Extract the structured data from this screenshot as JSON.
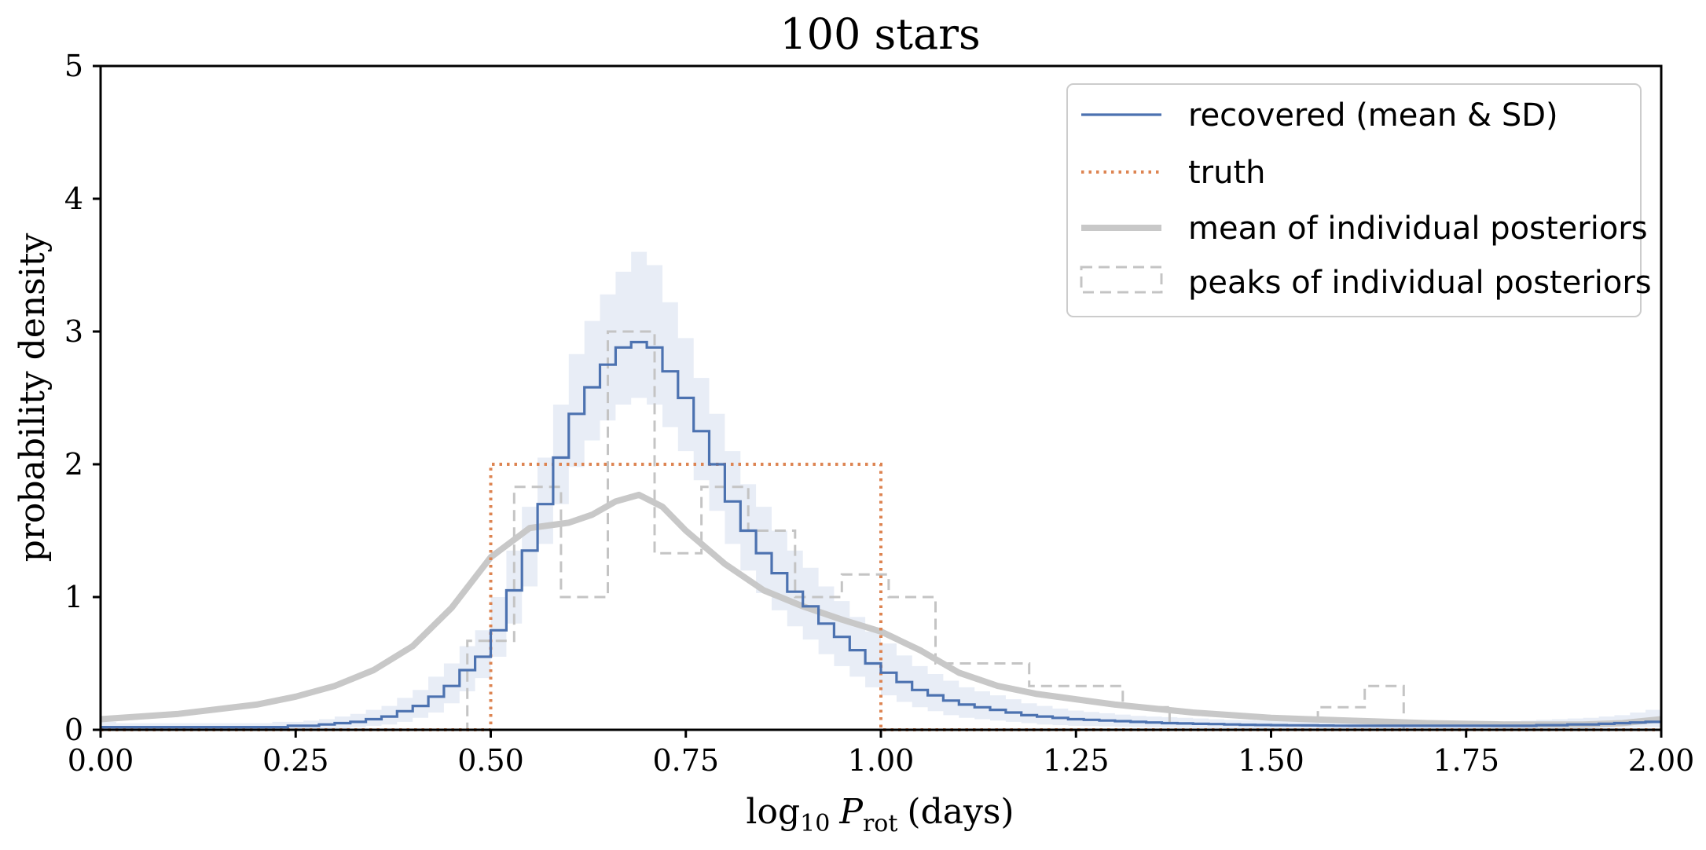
{
  "chart_data": {
    "type": "line",
    "title": "100 stars",
    "xlabel_prefix": "log",
    "xlabel_sub": "10",
    "xlabel_var": "P",
    "xlabel_var_sub": "rot",
    "xlabel_suffix": "(days)",
    "ylabel": "probability density",
    "xlim": [
      0,
      2
    ],
    "ylim": [
      0,
      5
    ],
    "xticks": [
      0,
      0.25,
      0.5,
      0.75,
      1.0,
      1.25,
      1.5,
      1.75,
      2.0
    ],
    "xtick_labels": [
      "0.00",
      "0.25",
      "0.50",
      "0.75",
      "1.00",
      "1.25",
      "1.50",
      "1.75",
      "2.00"
    ],
    "yticks": [
      0,
      1,
      2,
      3,
      4,
      5
    ],
    "ytick_labels": [
      "0",
      "1",
      "2",
      "3",
      "4",
      "5"
    ],
    "legend_position": "top-right",
    "colors": {
      "recovered": "#4c72b0",
      "band": "#e8edf6",
      "truth": "#dd8452",
      "mean_posteriors": "#c8c8c8",
      "peaks": "#c4c4c4",
      "axes": "#000000"
    },
    "series": [
      {
        "name": "recovered (mean & SD)",
        "style": "step",
        "bin_edges": [
          0.0,
          0.02,
          0.04,
          0.06,
          0.08,
          0.1,
          0.12,
          0.14,
          0.16,
          0.18,
          0.2,
          0.22,
          0.24,
          0.26,
          0.28,
          0.3,
          0.32,
          0.34,
          0.36,
          0.38,
          0.4,
          0.42,
          0.44,
          0.46,
          0.48,
          0.5,
          0.52,
          0.54,
          0.56,
          0.58,
          0.6,
          0.62,
          0.64,
          0.66,
          0.68,
          0.7,
          0.72,
          0.74,
          0.76,
          0.78,
          0.8,
          0.82,
          0.84,
          0.86,
          0.88,
          0.9,
          0.92,
          0.94,
          0.96,
          0.98,
          1.0,
          1.02,
          1.04,
          1.06,
          1.08,
          1.1,
          1.12,
          1.14,
          1.16,
          1.18,
          1.2,
          1.22,
          1.24,
          1.26,
          1.28,
          1.3,
          1.32,
          1.34,
          1.36,
          1.38,
          1.4,
          1.42,
          1.44,
          1.46,
          1.48,
          1.5,
          1.52,
          1.54,
          1.56,
          1.58,
          1.6,
          1.62,
          1.64,
          1.66,
          1.68,
          1.7,
          1.72,
          1.74,
          1.76,
          1.78,
          1.8,
          1.82,
          1.84,
          1.86,
          1.88,
          1.9,
          1.92,
          1.94,
          1.96,
          1.98,
          2.0
        ],
        "mean": [
          0.02,
          0.02,
          0.02,
          0.02,
          0.02,
          0.02,
          0.02,
          0.02,
          0.02,
          0.02,
          0.02,
          0.02,
          0.03,
          0.03,
          0.04,
          0.05,
          0.06,
          0.08,
          0.1,
          0.14,
          0.18,
          0.25,
          0.33,
          0.45,
          0.55,
          0.75,
          1.05,
          1.35,
          1.7,
          2.05,
          2.38,
          2.58,
          2.75,
          2.88,
          2.92,
          2.88,
          2.7,
          2.5,
          2.25,
          2.0,
          1.72,
          1.5,
          1.33,
          1.18,
          1.04,
          0.93,
          0.8,
          0.7,
          0.6,
          0.5,
          0.43,
          0.36,
          0.3,
          0.26,
          0.22,
          0.19,
          0.17,
          0.15,
          0.13,
          0.11,
          0.1,
          0.09,
          0.08,
          0.075,
          0.07,
          0.065,
          0.06,
          0.055,
          0.05,
          0.048,
          0.045,
          0.043,
          0.04,
          0.038,
          0.036,
          0.035,
          0.034,
          0.033,
          0.032,
          0.031,
          0.03,
          0.03,
          0.03,
          0.03,
          0.03,
          0.03,
          0.03,
          0.03,
          0.03,
          0.03,
          0.03,
          0.03,
          0.035,
          0.035,
          0.04,
          0.04,
          0.045,
          0.05,
          0.055,
          0.06
        ],
        "lower": [
          0.0,
          0.0,
          0.0,
          0.0,
          0.0,
          0.0,
          0.0,
          0.0,
          0.0,
          0.0,
          0.0,
          0.0,
          0.0,
          0.0,
          0.01,
          0.01,
          0.02,
          0.03,
          0.04,
          0.06,
          0.09,
          0.13,
          0.2,
          0.29,
          0.39,
          0.55,
          0.8,
          1.08,
          1.4,
          1.7,
          1.98,
          2.18,
          2.33,
          2.45,
          2.5,
          2.45,
          2.28,
          2.1,
          1.88,
          1.65,
          1.4,
          1.2,
          1.03,
          0.9,
          0.78,
          0.68,
          0.57,
          0.48,
          0.4,
          0.32,
          0.26,
          0.21,
          0.17,
          0.14,
          0.11,
          0.09,
          0.08,
          0.07,
          0.06,
          0.05,
          0.04,
          0.035,
          0.03,
          0.028,
          0.025,
          0.022,
          0.02,
          0.018,
          0.016,
          0.015,
          0.013,
          0.012,
          0.011,
          0.01,
          0.01,
          0.01,
          0.01,
          0.01,
          0.01,
          0.01,
          0.01,
          0.01,
          0.01,
          0.01,
          0.01,
          0.01,
          0.01,
          0.01,
          0.01,
          0.01,
          0.01,
          0.01,
          0.01,
          0.01,
          0.012,
          0.012,
          0.015,
          0.018,
          0.02,
          0.02
        ],
        "upper": [
          0.06,
          0.05,
          0.05,
          0.05,
          0.05,
          0.05,
          0.05,
          0.05,
          0.05,
          0.05,
          0.05,
          0.06,
          0.06,
          0.07,
          0.08,
          0.1,
          0.12,
          0.15,
          0.18,
          0.24,
          0.3,
          0.4,
          0.5,
          0.63,
          0.75,
          1.0,
          1.35,
          1.68,
          2.05,
          2.45,
          2.83,
          3.08,
          3.28,
          3.45,
          3.6,
          3.5,
          3.22,
          2.95,
          2.65,
          2.38,
          2.1,
          1.85,
          1.68,
          1.5,
          1.35,
          1.22,
          1.08,
          0.97,
          0.85,
          0.74,
          0.65,
          0.56,
          0.48,
          0.42,
          0.37,
          0.32,
          0.29,
          0.26,
          0.23,
          0.2,
          0.18,
          0.16,
          0.145,
          0.135,
          0.125,
          0.115,
          0.105,
          0.1,
          0.095,
          0.09,
          0.085,
          0.08,
          0.075,
          0.072,
          0.07,
          0.068,
          0.066,
          0.064,
          0.062,
          0.06,
          0.06,
          0.06,
          0.06,
          0.06,
          0.06,
          0.06,
          0.06,
          0.06,
          0.06,
          0.06,
          0.065,
          0.07,
          0.075,
          0.08,
          0.085,
          0.09,
          0.1,
          0.11,
          0.13,
          0.15
        ]
      },
      {
        "name": "truth",
        "style": "dotted-step",
        "x": [
          0.0,
          0.5,
          0.5,
          1.0,
          1.0,
          2.0
        ],
        "y": [
          0.0,
          0.0,
          2.0,
          2.0,
          0.0,
          0.0
        ]
      },
      {
        "name": "mean of individual posteriors",
        "style": "thick-line",
        "x": [
          0.0,
          0.1,
          0.2,
          0.25,
          0.3,
          0.35,
          0.4,
          0.45,
          0.5,
          0.55,
          0.6,
          0.63,
          0.66,
          0.69,
          0.72,
          0.75,
          0.8,
          0.85,
          0.9,
          0.95,
          1.0,
          1.05,
          1.1,
          1.15,
          1.2,
          1.3,
          1.4,
          1.5,
          1.6,
          1.7,
          1.8,
          1.9,
          1.95,
          2.0
        ],
        "y": [
          0.08,
          0.12,
          0.19,
          0.25,
          0.33,
          0.45,
          0.63,
          0.92,
          1.3,
          1.52,
          1.56,
          1.62,
          1.72,
          1.77,
          1.68,
          1.5,
          1.25,
          1.05,
          0.93,
          0.83,
          0.74,
          0.6,
          0.43,
          0.33,
          0.27,
          0.19,
          0.13,
          0.09,
          0.07,
          0.05,
          0.04,
          0.04,
          0.05,
          0.08
        ]
      },
      {
        "name": "peaks of individual posteriors",
        "style": "dashed-step",
        "bin_edges": [
          0.0,
          0.47,
          0.53,
          0.59,
          0.65,
          0.71,
          0.77,
          0.83,
          0.89,
          0.95,
          1.01,
          1.07,
          1.19,
          1.31,
          1.37,
          1.56,
          1.62,
          1.67,
          2.0
        ],
        "values": [
          0.0,
          0.67,
          1.83,
          1.0,
          3.0,
          1.33,
          1.83,
          1.5,
          1.0,
          1.17,
          1.0,
          0.5,
          0.33,
          0.17,
          0.0,
          0.17,
          0.33,
          0.0
        ]
      }
    ]
  }
}
